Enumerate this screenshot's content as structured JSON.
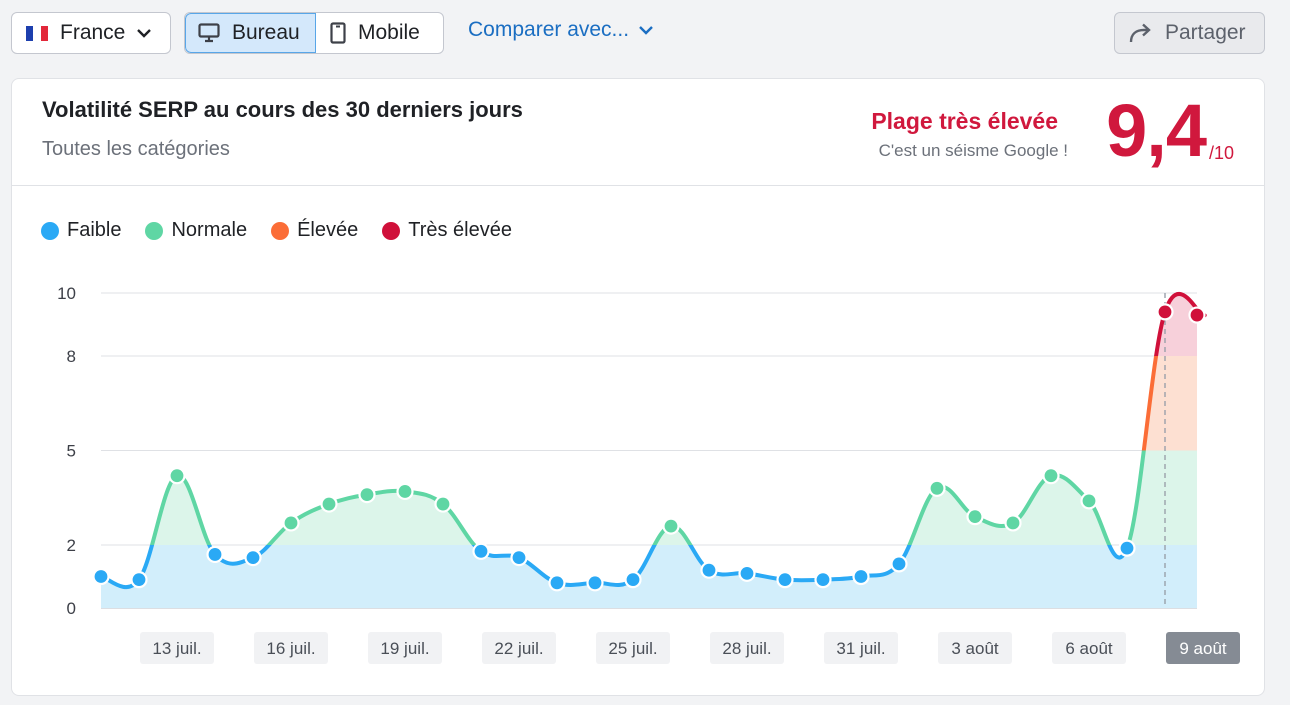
{
  "toolbar": {
    "country_label": "France",
    "device_desktop_label": "Bureau",
    "device_mobile_label": "Mobile",
    "compare_label": "Comparer avec...",
    "share_label": "Partager"
  },
  "card": {
    "title": "Volatilité SERP au cours des 30 derniers jours",
    "subtitle": "Toutes les catégories",
    "range_label": "Plage très élevée",
    "range_sub": "C'est un séisme Google !",
    "score": "9,4",
    "score_max": "/10"
  },
  "legend": [
    {
      "label": "Faible",
      "color": "#2aa9f5"
    },
    {
      "label": "Normale",
      "color": "#5fd6a4"
    },
    {
      "label": "Élevée",
      "color": "#fb6d37"
    },
    {
      "label": "Très élevée",
      "color": "#d0103a"
    }
  ],
  "chart_data": {
    "type": "area",
    "ylim": [
      0,
      10
    ],
    "yticks": [
      0,
      2,
      5,
      8,
      10
    ],
    "xtick_labels": [
      "13 juil.",
      "16 juil.",
      "19 juil.",
      "22 juil.",
      "25 juil.",
      "28 juil.",
      "31 juil.",
      "3 août",
      "6 août",
      "9 août"
    ],
    "xtick_indices": [
      1,
      4,
      7,
      10,
      13,
      16,
      19,
      22,
      25,
      28
    ],
    "selected_label": "9 août",
    "values": [
      1.0,
      0.9,
      4.2,
      1.7,
      1.6,
      2.7,
      3.3,
      3.6,
      3.7,
      3.3,
      1.8,
      1.6,
      0.8,
      0.8,
      0.9,
      2.6,
      1.2,
      1.1,
      0.9,
      0.9,
      1.0,
      1.4,
      3.8,
      2.9,
      2.7,
      4.2,
      3.4,
      1.9,
      9.4,
      9.3
    ],
    "bands": [
      {
        "from": 0,
        "to": 2,
        "name": "Faible",
        "line": "#2aa9f5",
        "fill": "#d2eefb"
      },
      {
        "from": 2,
        "to": 5,
        "name": "Normale",
        "line": "#5fd6a4",
        "fill": "#dcf5ea"
      },
      {
        "from": 5,
        "to": 8,
        "name": "Élevée",
        "line": "#fb6d37",
        "fill": "#fde0d2"
      },
      {
        "from": 8,
        "to": 10,
        "name": "Très élevée",
        "line": "#d0103a",
        "fill": "#f7d0da"
      }
    ]
  }
}
